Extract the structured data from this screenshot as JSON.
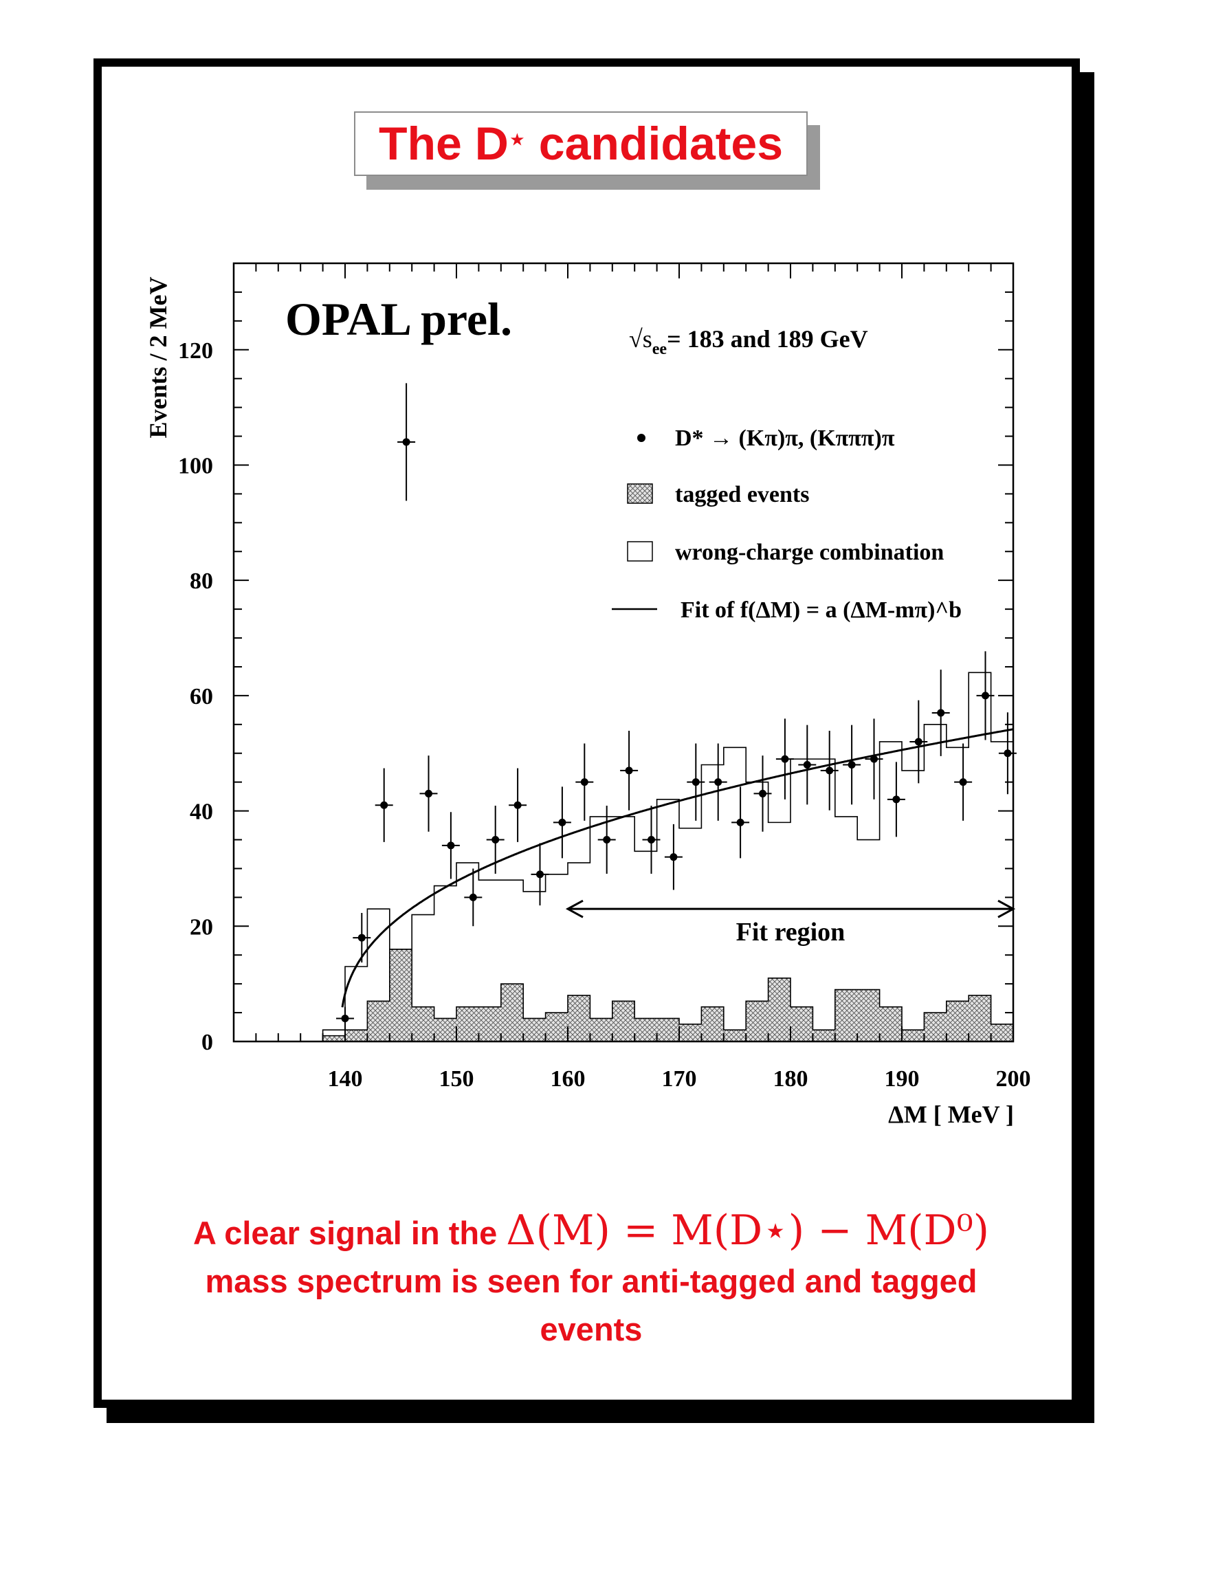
{
  "title": {
    "main": "The D",
    "superscript": "⋆",
    "rest": " candidates"
  },
  "caption": {
    "line1_text": "A clear signal in the",
    "line1_math": "Δ(M) = M(D⋆) − M(D⁰)",
    "line2": "mass spectrum is seen for anti-tagged and tagged",
    "line3": "events"
  },
  "colors": {
    "accent_red": "#e8101a",
    "ink": "#000000",
    "hatch_fill": "#d8d8d8"
  },
  "chart_data": {
    "type": "histogram",
    "annotation_main": "OPAL prel.",
    "energy_label": "√s_ee= 183 and 189 GeV",
    "energy_sqrt": "√s",
    "energy_sub": "ee",
    "energy_rest": "= 183 and 189 GeV",
    "xlabel": "ΔM [ MeV ]",
    "ylabel": "Events / 2 MeV",
    "xlim": [
      130,
      200
    ],
    "ylim": [
      0,
      135
    ],
    "x_ticks": [
      140,
      150,
      160,
      170,
      180,
      190,
      200
    ],
    "y_ticks": [
      0,
      20,
      40,
      60,
      80,
      100,
      120
    ],
    "legend": {
      "data": "D* → (Kπ)π,  (Kπππ)π",
      "tagged": "tagged events",
      "wrong_charge": "wrong-charge combination",
      "fit": "Fit of f(ΔM) = a (ΔM-mπ)^b"
    },
    "fit_region": {
      "label": "Fit region",
      "x_range": [
        160,
        200
      ],
      "y": 23
    },
    "data_points": [
      {
        "x": 140,
        "y": 4,
        "err": 2
      },
      {
        "x": 141.5,
        "y": 18,
        "err": 4.3
      },
      {
        "x": 143.5,
        "y": 41,
        "err": 6.4
      },
      {
        "x": 145.5,
        "y": 104,
        "err": 10.2
      },
      {
        "x": 147.5,
        "y": 43,
        "err": 6.6
      },
      {
        "x": 149.5,
        "y": 34,
        "err": 5.8
      },
      {
        "x": 151.5,
        "y": 25,
        "err": 5
      },
      {
        "x": 153.5,
        "y": 35,
        "err": 5.9
      },
      {
        "x": 155.5,
        "y": 41,
        "err": 6.4
      },
      {
        "x": 157.5,
        "y": 29,
        "err": 5.4
      },
      {
        "x": 159.5,
        "y": 38,
        "err": 6.2
      },
      {
        "x": 161.5,
        "y": 45,
        "err": 6.7
      },
      {
        "x": 163.5,
        "y": 35,
        "err": 5.9
      },
      {
        "x": 165.5,
        "y": 47,
        "err": 6.9
      },
      {
        "x": 167.5,
        "y": 35,
        "err": 5.9
      },
      {
        "x": 169.5,
        "y": 32,
        "err": 5.7
      },
      {
        "x": 171.5,
        "y": 45,
        "err": 6.7
      },
      {
        "x": 173.5,
        "y": 45,
        "err": 6.7
      },
      {
        "x": 175.5,
        "y": 38,
        "err": 6.2
      },
      {
        "x": 177.5,
        "y": 43,
        "err": 6.6
      },
      {
        "x": 179.5,
        "y": 49,
        "err": 7
      },
      {
        "x": 181.5,
        "y": 48,
        "err": 6.9
      },
      {
        "x": 183.5,
        "y": 47,
        "err": 6.9
      },
      {
        "x": 185.5,
        "y": 48,
        "err": 6.9
      },
      {
        "x": 187.5,
        "y": 49,
        "err": 7
      },
      {
        "x": 189.5,
        "y": 42,
        "err": 6.5
      },
      {
        "x": 191.5,
        "y": 52,
        "err": 7.2
      },
      {
        "x": 193.5,
        "y": 57,
        "err": 7.5
      },
      {
        "x": 195.5,
        "y": 45,
        "err": 6.7
      },
      {
        "x": 197.5,
        "y": 60,
        "err": 7.7
      },
      {
        "x": 199.5,
        "y": 50,
        "err": 7.1
      }
    ],
    "wrong_charge_hist": {
      "bin_edges": [
        138,
        140,
        142,
        144,
        146,
        148,
        150,
        152,
        154,
        156,
        158,
        160,
        162,
        164,
        166,
        168,
        170,
        172,
        174,
        176,
        178,
        180,
        182,
        184,
        186,
        188,
        190,
        192,
        194,
        196,
        198,
        200
      ],
      "values": [
        2,
        13,
        23,
        16,
        22,
        27,
        31,
        28,
        28,
        26,
        29,
        31,
        39,
        39,
        33,
        42,
        37,
        48,
        51,
        45,
        38,
        49,
        49,
        39,
        35,
        52,
        47,
        55,
        51,
        64,
        52
      ]
    },
    "wrong_charge_last_partial": 55,
    "tagged_hist": {
      "bin_edges": [
        138,
        140,
        142,
        144,
        146,
        148,
        150,
        152,
        154,
        156,
        158,
        160,
        162,
        164,
        166,
        168,
        170,
        172,
        174,
        176,
        178,
        180,
        182,
        184,
        186,
        188,
        190,
        192,
        194,
        196,
        198,
        200
      ],
      "values": [
        1,
        2,
        7,
        16,
        6,
        4,
        6,
        6,
        10,
        4,
        5,
        8,
        4,
        7,
        4,
        4,
        3,
        6,
        2,
        7,
        11,
        6,
        2,
        9,
        9,
        6,
        2,
        5,
        7,
        8,
        3
      ]
    },
    "fit": {
      "a": 11.4,
      "b": 0.38,
      "m_pi": 139.57,
      "x_range": [
        139.75,
        200
      ]
    }
  }
}
